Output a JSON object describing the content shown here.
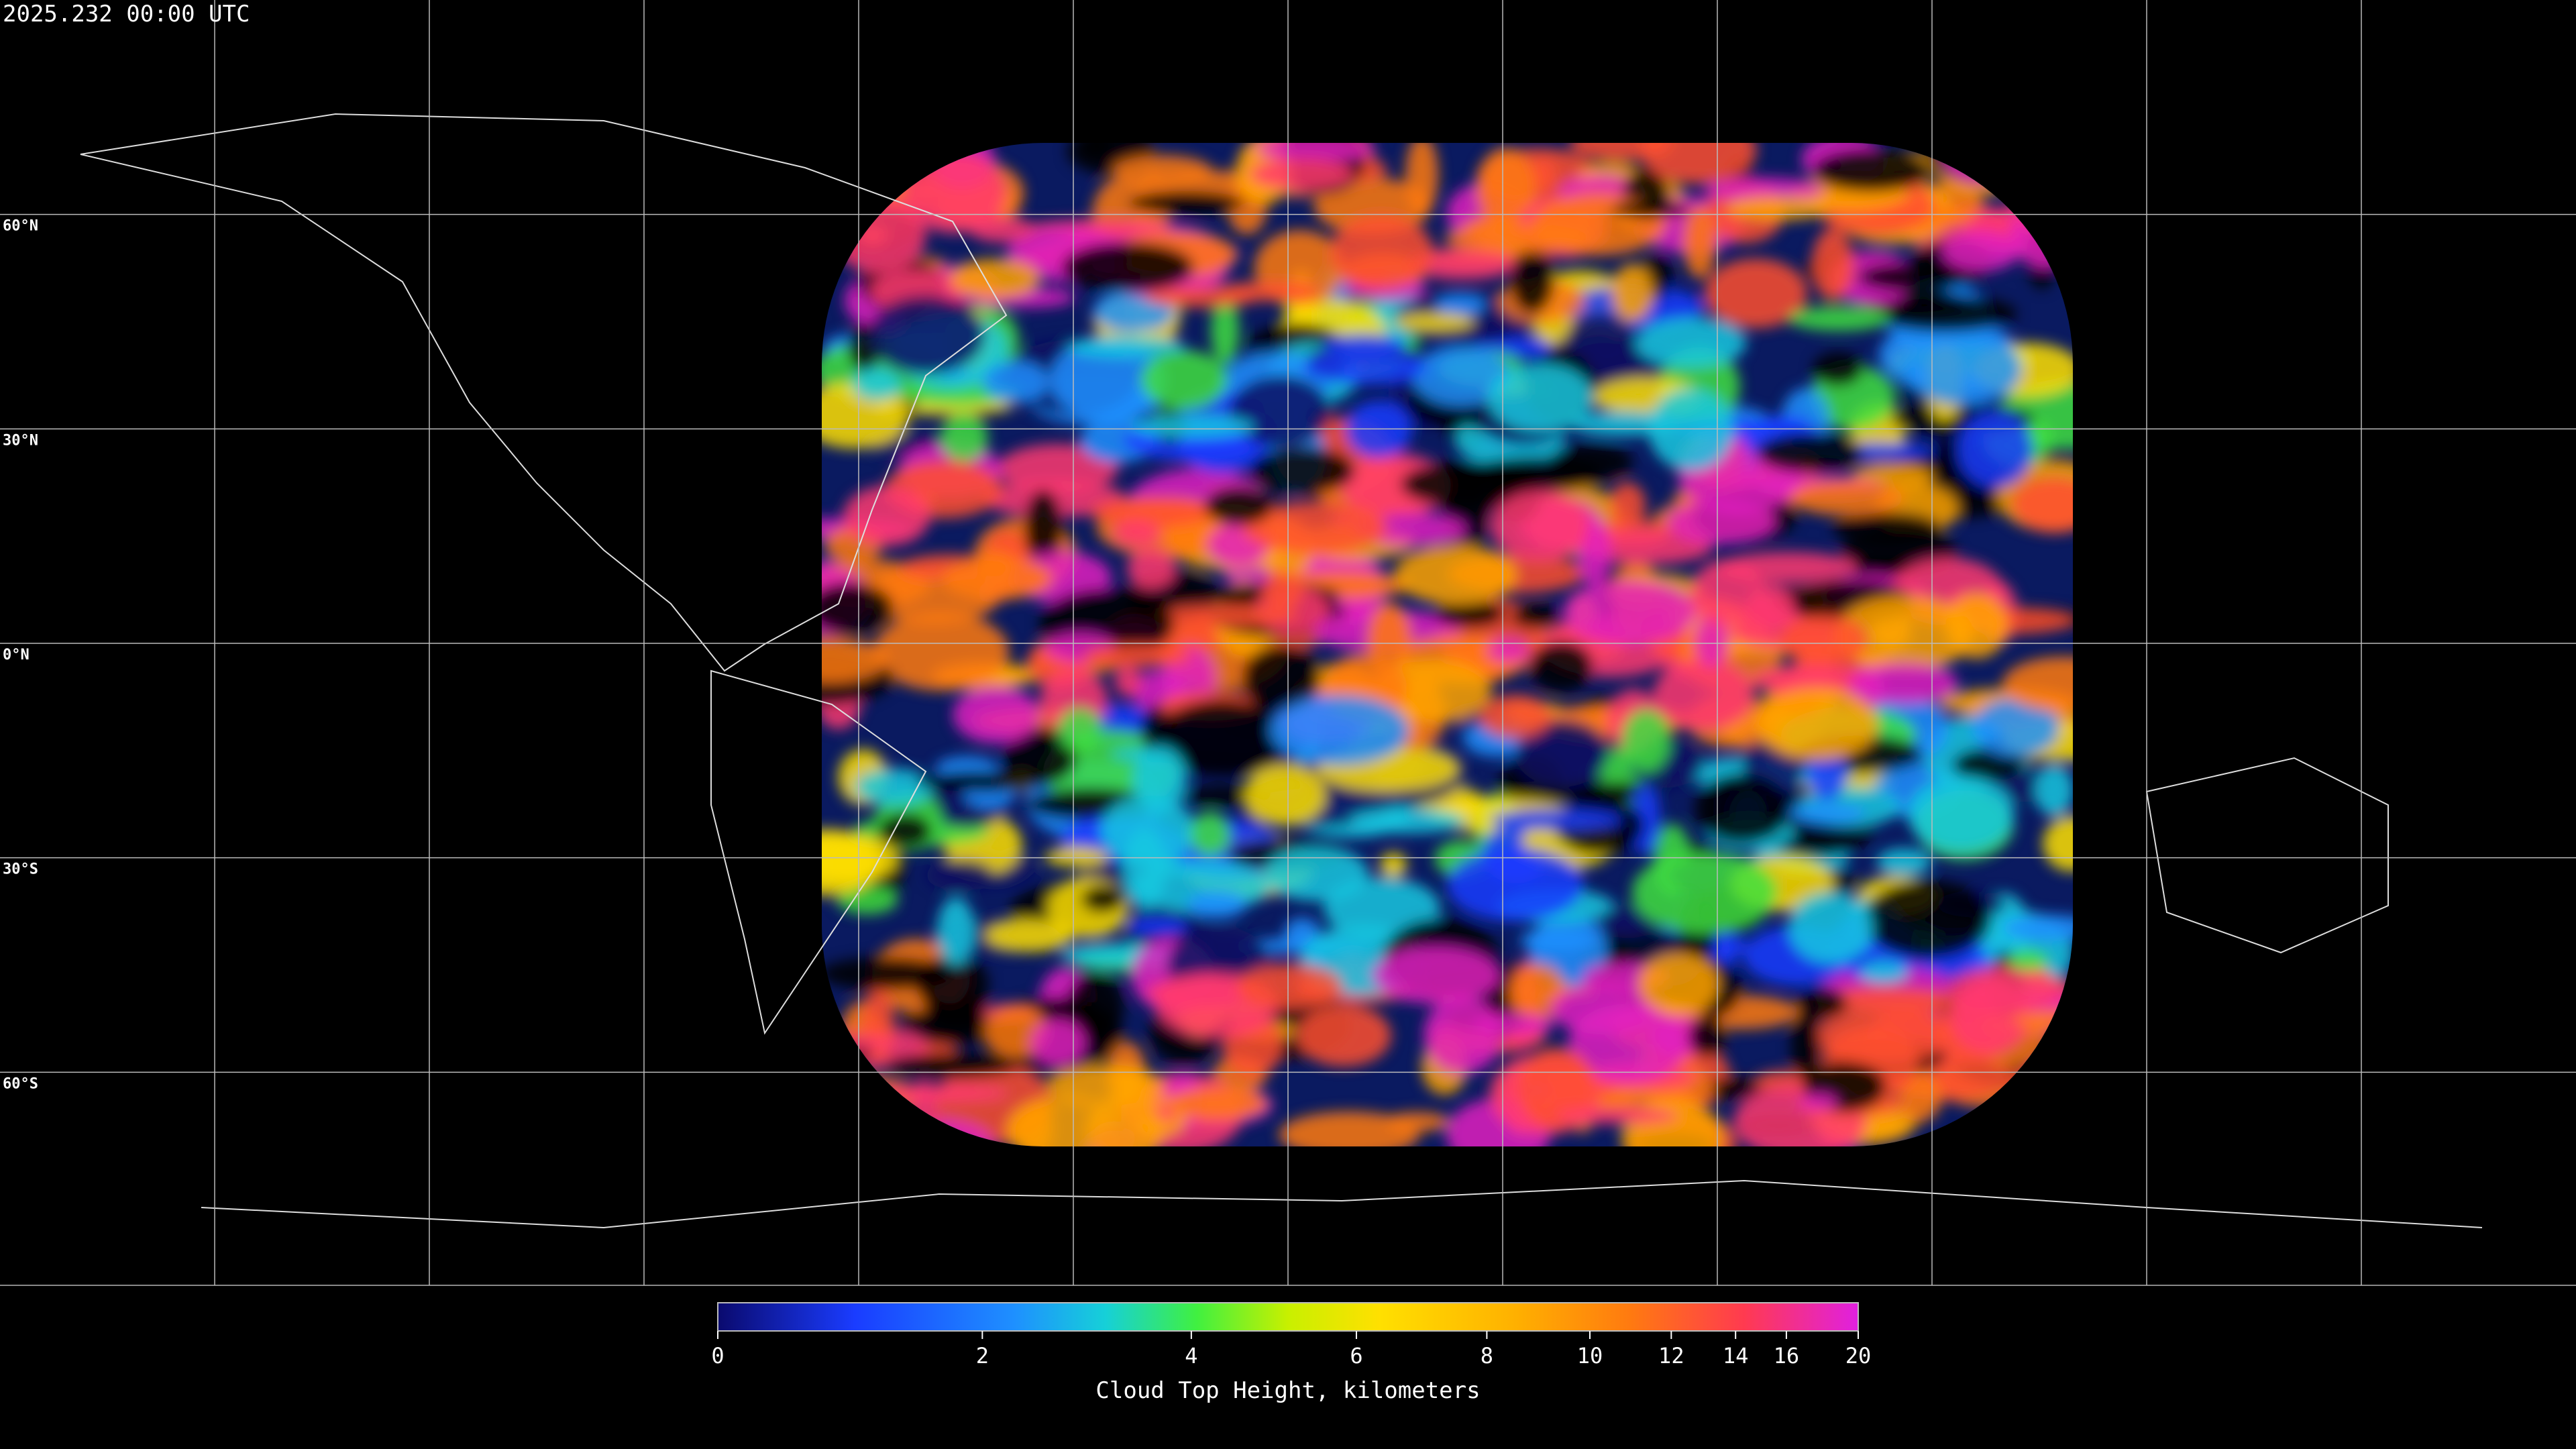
{
  "title": "2025.232 00:00 UTC",
  "map": {
    "lat_lines": [
      {
        "value": 60,
        "label": "60°N"
      },
      {
        "value": 30,
        "label": "30°N"
      },
      {
        "value": 0,
        "label": "0°N"
      },
      {
        "value": -30,
        "label": "30°S"
      },
      {
        "value": -60,
        "label": "60°S"
      }
    ]
  },
  "colorbar": {
    "label": "Cloud Top Height, kilometers",
    "range": [
      0,
      20
    ],
    "ticks": [
      0,
      2,
      4,
      6,
      8,
      10,
      12,
      14,
      16,
      20
    ]
  }
}
